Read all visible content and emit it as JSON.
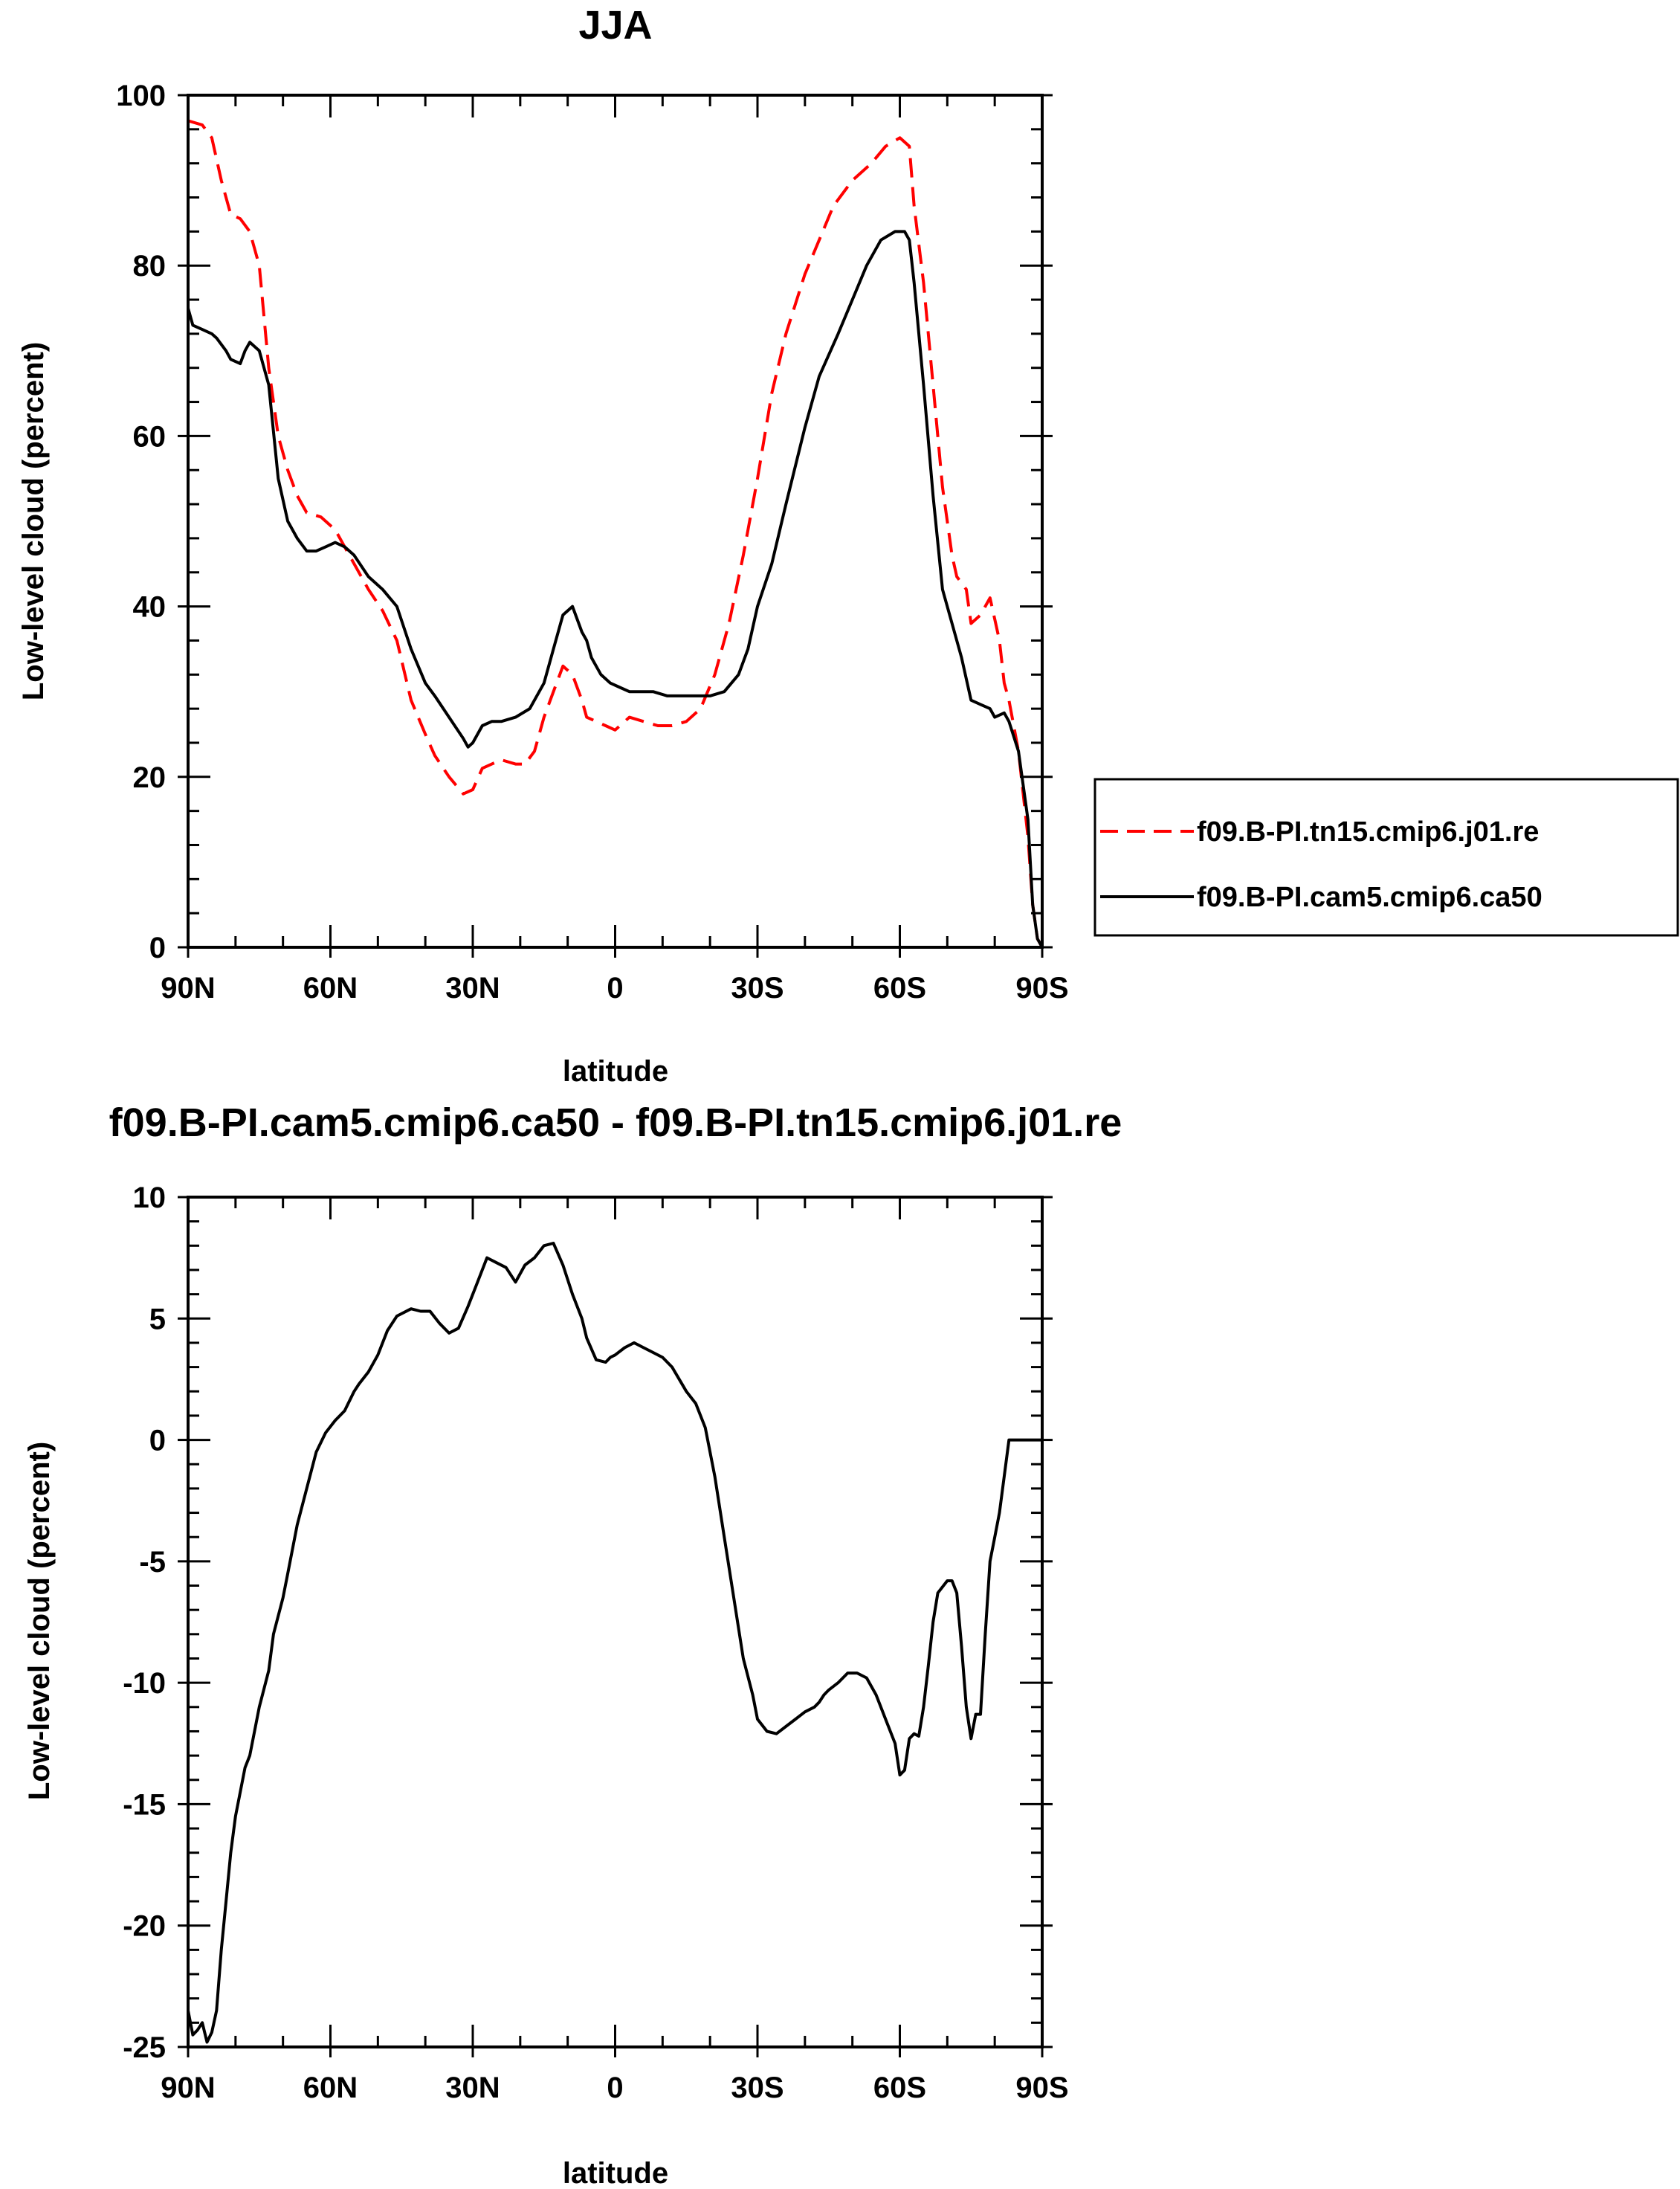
{
  "chart_data": [
    {
      "type": "line",
      "title": "JJA",
      "xlabel": "latitude",
      "ylabel": "Low-level cloud (percent)",
      "xlim": [
        90,
        -90
      ],
      "ylim": [
        0,
        100
      ],
      "x_ticks": [
        90,
        60,
        30,
        0,
        -30,
        -60,
        -90
      ],
      "x_tick_labels": [
        "90N",
        "60N",
        "30N",
        "0",
        "30S",
        "60S",
        "90S"
      ],
      "y_ticks": [
        0,
        20,
        40,
        60,
        80,
        100
      ],
      "y_tick_labels": [
        "0",
        "20",
        "40",
        "60",
        "80",
        "100"
      ],
      "grid": false,
      "legend": "outside-right",
      "series": [
        {
          "name": "f09.B-PI.tn15.cmip6.j01.re",
          "color": "#ff0000",
          "dash": "dashed",
          "x": [
            90,
            87,
            85,
            83,
            81,
            79,
            77,
            75,
            73,
            71,
            69,
            67,
            65,
            62,
            59,
            57,
            55,
            52,
            49,
            46,
            43,
            40,
            38,
            35,
            32,
            30,
            28,
            26,
            24,
            21,
            19,
            17,
            15,
            13,
            11,
            9,
            7,
            6,
            4,
            2,
            0,
            -3,
            -6,
            -9,
            -12,
            -15,
            -18,
            -21,
            -24,
            -27,
            -30,
            -33,
            -36,
            -40,
            -43,
            -46,
            -50,
            -54,
            -57,
            -60,
            -62,
            -63,
            -65,
            -67,
            -69,
            -71,
            -72,
            -74,
            -75,
            -77,
            -79,
            -80,
            -81,
            -82,
            -83,
            -85,
            -87,
            -88,
            -89,
            -90
          ],
          "y": [
            97,
            96.5,
            95,
            90,
            86,
            85.5,
            84,
            80,
            68,
            60,
            56,
            53,
            51,
            50.5,
            49,
            47,
            45,
            42,
            39.5,
            36,
            29,
            25,
            22.5,
            20,
            18,
            18.5,
            21,
            21.5,
            22,
            21.5,
            21.5,
            23,
            27,
            30,
            33,
            32,
            29,
            27,
            26.5,
            26,
            25.5,
            27,
            26.5,
            26,
            26,
            26.5,
            28,
            32,
            38,
            46,
            55,
            65,
            72,
            79,
            83,
            87,
            90,
            92,
            94,
            95,
            94,
            87,
            78,
            66,
            54,
            46,
            43.5,
            42,
            38,
            39,
            41,
            38.5,
            36,
            31,
            29,
            23,
            13,
            5,
            1,
            0
          ]
        },
        {
          "name": "f09.B-PI.cam5.cmip6.ca50",
          "color": "#000000",
          "dash": "solid",
          "x": [
            90,
            89,
            87,
            85,
            84,
            82,
            81,
            79,
            78,
            77,
            75,
            73,
            71,
            69,
            67,
            65,
            63,
            61,
            59,
            57,
            55,
            52,
            49,
            46,
            43,
            40,
            38,
            35,
            32,
            31,
            30,
            28,
            26,
            24,
            21,
            18,
            15,
            13,
            11,
            9,
            7,
            6,
            5,
            3,
            1,
            -1,
            -3,
            -5,
            -8,
            -11,
            -14,
            -17,
            -20,
            -23,
            -26,
            -28,
            -30,
            -33,
            -36,
            -40,
            -43,
            -47,
            -50,
            -53,
            -56,
            -59,
            -61,
            -62,
            -63,
            -65,
            -67,
            -69,
            -71,
            -73,
            -75,
            -77,
            -79,
            -80,
            -82,
            -83,
            -85,
            -87,
            -88,
            -89,
            -90
          ],
          "y": [
            75,
            73,
            72.5,
            72,
            71.5,
            70,
            69,
            68.5,
            70,
            71,
            70,
            66,
            55,
            50,
            48,
            46.5,
            46.5,
            47,
            47.5,
            47,
            46,
            43.5,
            42,
            40,
            35,
            31,
            29.5,
            27,
            24.5,
            23.5,
            24,
            26,
            26.5,
            26.5,
            27,
            28,
            31,
            35,
            39,
            40,
            37,
            36,
            34,
            32,
            31,
            30.5,
            30,
            30,
            30,
            29.5,
            29.5,
            29.5,
            29.5,
            30,
            32,
            35,
            40,
            45,
            52,
            61,
            67,
            72,
            76,
            80,
            83,
            84,
            84,
            83,
            78,
            66,
            53,
            42,
            38,
            34,
            29,
            28.5,
            28,
            27,
            27.5,
            26.5,
            23,
            15,
            5,
            1,
            0
          ]
        }
      ]
    },
    {
      "type": "line",
      "title": "f09.B-PI.cam5.cmip6.ca50 - f09.B-PI.tn15.cmip6.j01.re",
      "xlabel": "latitude",
      "ylabel": "Low-level cloud (percent)",
      "xlim": [
        90,
        -90
      ],
      "ylim": [
        -25,
        10
      ],
      "x_ticks": [
        90,
        60,
        30,
        0,
        -30,
        -60,
        -90
      ],
      "x_tick_labels": [
        "90N",
        "60N",
        "30N",
        "0",
        "30S",
        "60S",
        "90S"
      ],
      "y_ticks": [
        -25,
        -20,
        -15,
        -10,
        -5,
        0,
        5,
        10
      ],
      "y_tick_labels": [
        "-25",
        "-20",
        "-15",
        "-10",
        "-5",
        "0",
        "5",
        "10"
      ],
      "grid": false,
      "series": [
        {
          "color": "#000000",
          "dash": "solid",
          "x": [
            90,
            89,
            88,
            87,
            86,
            85,
            84,
            83,
            82,
            81,
            80,
            78,
            77,
            76,
            75,
            73,
            72,
            70,
            69,
            67,
            65,
            63,
            61,
            59,
            57,
            55,
            54,
            52,
            50,
            48,
            46,
            43,
            41,
            39,
            37,
            35,
            33,
            31,
            29,
            27,
            25,
            23,
            21,
            19,
            17,
            15,
            13,
            11,
            9,
            7,
            6,
            4,
            2,
            1,
            0,
            -2,
            -4,
            -6,
            -8,
            -10,
            -12,
            -15,
            -17,
            -19,
            -21,
            -23,
            -25,
            -27,
            -29,
            -30,
            -32,
            -34,
            -36,
            -38,
            -40,
            -42,
            -43,
            -44,
            -45,
            -47,
            -49,
            -51,
            -53,
            -55,
            -57,
            -59,
            -60,
            -61,
            -62,
            -63,
            -64,
            -65,
            -66,
            -67,
            -68,
            -70,
            -71,
            -72,
            -73,
            -74,
            -75,
            -76,
            -77,
            -78,
            -79,
            -80,
            -81,
            -82,
            -83,
            -84,
            -85,
            -86,
            -87,
            -88,
            -89,
            -90
          ],
          "y": [
            -23.5,
            -24.5,
            -24.3,
            -24,
            -24.8,
            -24.4,
            -23.5,
            -21,
            -19,
            -17,
            -15.5,
            -13.5,
            -13,
            -12,
            -11,
            -9.5,
            -8,
            -6.5,
            -5.5,
            -3.5,
            -2,
            -0.5,
            0.3,
            0.8,
            1.2,
            2,
            2.3,
            2.8,
            3.5,
            4.5,
            5.1,
            5.4,
            5.3,
            5.3,
            4.8,
            4.4,
            4.6,
            5.5,
            6.5,
            7.5,
            7.3,
            7.1,
            6.5,
            7.2,
            7.5,
            8.0,
            8.1,
            7.2,
            6.0,
            5.0,
            4.2,
            3.3,
            3.2,
            3.4,
            3.5,
            3.8,
            4.0,
            3.8,
            3.6,
            3.4,
            3.0,
            2.0,
            1.5,
            0.5,
            -1.5,
            -4.0,
            -6.5,
            -9.0,
            -10.5,
            -11.5,
            -12.0,
            -12.1,
            -11.8,
            -11.5,
            -11.2,
            -11.0,
            -10.8,
            -10.5,
            -10.3,
            -10.0,
            -9.6,
            -9.6,
            -9.8,
            -10.5,
            -11.5,
            -12.5,
            -13.8,
            -13.6,
            -12.3,
            -12.1,
            -12.2,
            -11.0,
            -9.3,
            -7.5,
            -6.3,
            -5.8,
            -5.8,
            -6.3,
            -8.5,
            -11.0,
            -12.3,
            -11.3,
            -11.3,
            -8.0,
            -5.0,
            -4.0,
            -3.0,
            -1.5,
            0,
            0,
            0,
            0,
            0,
            0,
            0,
            0
          ]
        }
      ]
    }
  ]
}
